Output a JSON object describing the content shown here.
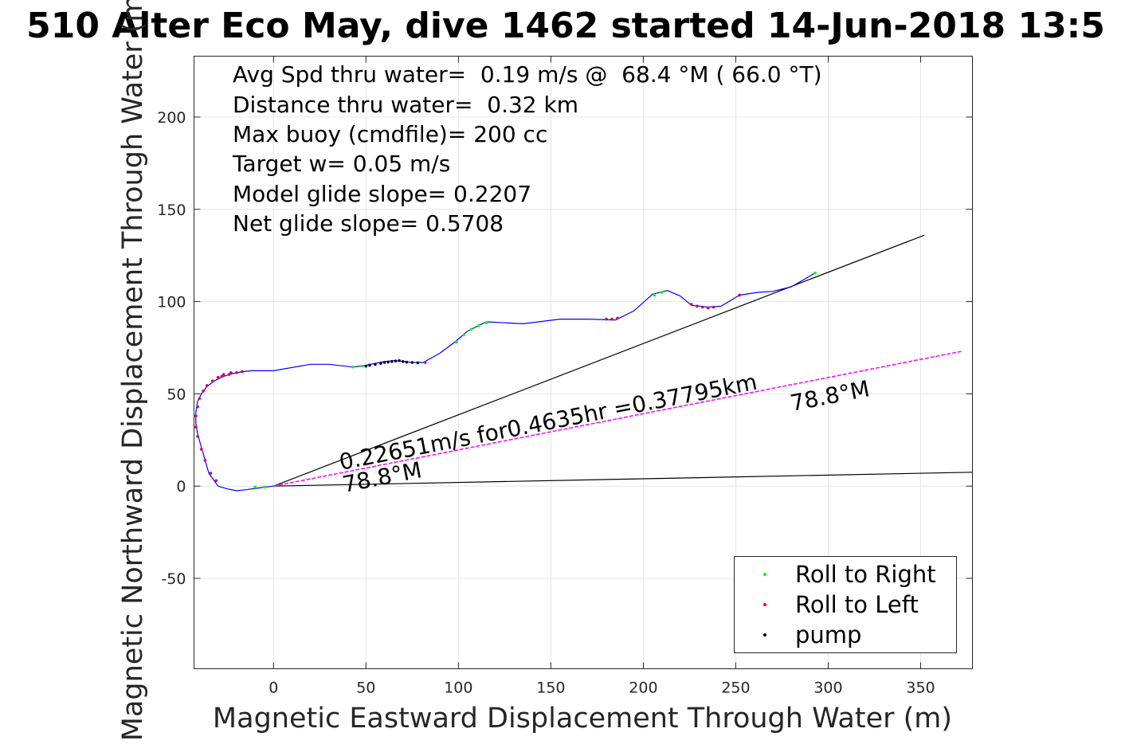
{
  "chart_data": {
    "type": "line",
    "title": "510 Alter Eco May, dive 1462 started 14-Jun-2018 13:5",
    "xlabel": "Magnetic Eastward Displacement Through Water (m)",
    "ylabel": "Magnetic Northward Displacement Through Water (m)",
    "xlim": [
      -43,
      378
    ],
    "ylim": [
      -99,
      233
    ],
    "xticks": [
      0,
      50,
      100,
      150,
      200,
      250,
      300,
      350
    ],
    "yticks": [
      -50,
      0,
      50,
      100,
      150,
      200
    ],
    "grid": true,
    "stats": [
      "Avg Spd thru water=  0.19 m/s @  68.4 °M ( 66.0 °T)",
      "Distance thru water=  0.32 km",
      "Max buoy (cmdfile)= 200 cc",
      "Target w= 0.05 m/s",
      "Model glide slope= 0.2207",
      "Net glide slope= 0.5708"
    ],
    "annotations": {
      "speed_text": "0.22651m/s for0.4635hr =0.37795km",
      "heading_near": "78.8°M",
      "heading_far": "78.8°M"
    },
    "legend": {
      "placement": "bottom-right",
      "items": [
        {
          "label": "Roll to Right",
          "color": "#00ff00"
        },
        {
          "label": "Roll to Left",
          "color": "#ff0000"
        },
        {
          "label": "pump",
          "color": "#000000"
        }
      ]
    },
    "colors": {
      "track": "#0000ff",
      "heading_line": "#ff00ff",
      "reference_lines": "#000000",
      "grid": "#e6e6e6"
    },
    "track": {
      "x": [
        0,
        -8,
        -15,
        -20,
        -25,
        -30,
        -35,
        -37,
        -39,
        -41,
        -42,
        -42,
        -41,
        -39,
        -36,
        -32,
        -27,
        -22,
        -17,
        -12,
        0,
        20,
        30,
        43,
        50,
        60,
        65,
        70,
        75,
        81,
        90,
        98,
        105,
        115,
        135,
        155,
        170,
        185,
        195,
        205,
        213,
        220,
        226,
        235,
        242,
        252,
        262,
        270,
        280,
        293
      ],
      "y": [
        0,
        -1,
        -2,
        -2.5,
        -1.5,
        0,
        7,
        14,
        21,
        28,
        34,
        40,
        46,
        50,
        54,
        57,
        59.5,
        61,
        62,
        62.5,
        62.5,
        66,
        66,
        64.5,
        65.5,
        67.5,
        68,
        67.5,
        67,
        67,
        72,
        78,
        84,
        89,
        88,
        90.5,
        90.5,
        90,
        95,
        104,
        106,
        103,
        98,
        97,
        97.5,
        103.5,
        105,
        105.5,
        108,
        115.5
      ]
    },
    "roll_right": {
      "x": [
        -10,
        -5,
        43,
        48,
        99,
        103,
        107,
        111,
        115,
        206,
        210,
        293
      ],
      "y": [
        -0.5,
        -0.5,
        64.5,
        65,
        78,
        82,
        85,
        87,
        88.5,
        103.5,
        105,
        115.5
      ]
    },
    "roll_left": {
      "x": [
        -23,
        -27,
        -30,
        -33,
        -36,
        -38,
        -40,
        -41,
        -42,
        -42,
        -41,
        -39,
        -37,
        -34,
        -31,
        -28,
        -24,
        -20,
        -17,
        82,
        180,
        183,
        186,
        226,
        229,
        232,
        235,
        238,
        252
      ],
      "y": [
        61.5,
        60.5,
        59,
        57,
        54.5,
        51.5,
        47.5,
        43,
        38,
        32,
        27,
        20,
        14,
        7,
        3,
        59.5,
        60.5,
        61.5,
        62,
        67,
        90.5,
        90.5,
        91,
        98.5,
        97.5,
        97,
        96.5,
        97,
        103.5
      ]
    },
    "pump": {
      "x": [
        50,
        52,
        55,
        58,
        60,
        62,
        64,
        66,
        68,
        70,
        72,
        75,
        78
      ],
      "y": [
        65,
        65.5,
        66,
        66.5,
        67,
        67.2,
        67.5,
        67.8,
        68,
        67.5,
        67.2,
        67,
        66.8
      ]
    },
    "heading_line": {
      "x": [
        0,
        372
      ],
      "y": [
        0,
        73
      ]
    },
    "reference_lines": [
      {
        "x": [
          0,
          352
        ],
        "y": [
          0,
          136
        ]
      },
      {
        "x": [
          0,
          378
        ],
        "y": [
          0,
          7.5
        ]
      }
    ]
  }
}
